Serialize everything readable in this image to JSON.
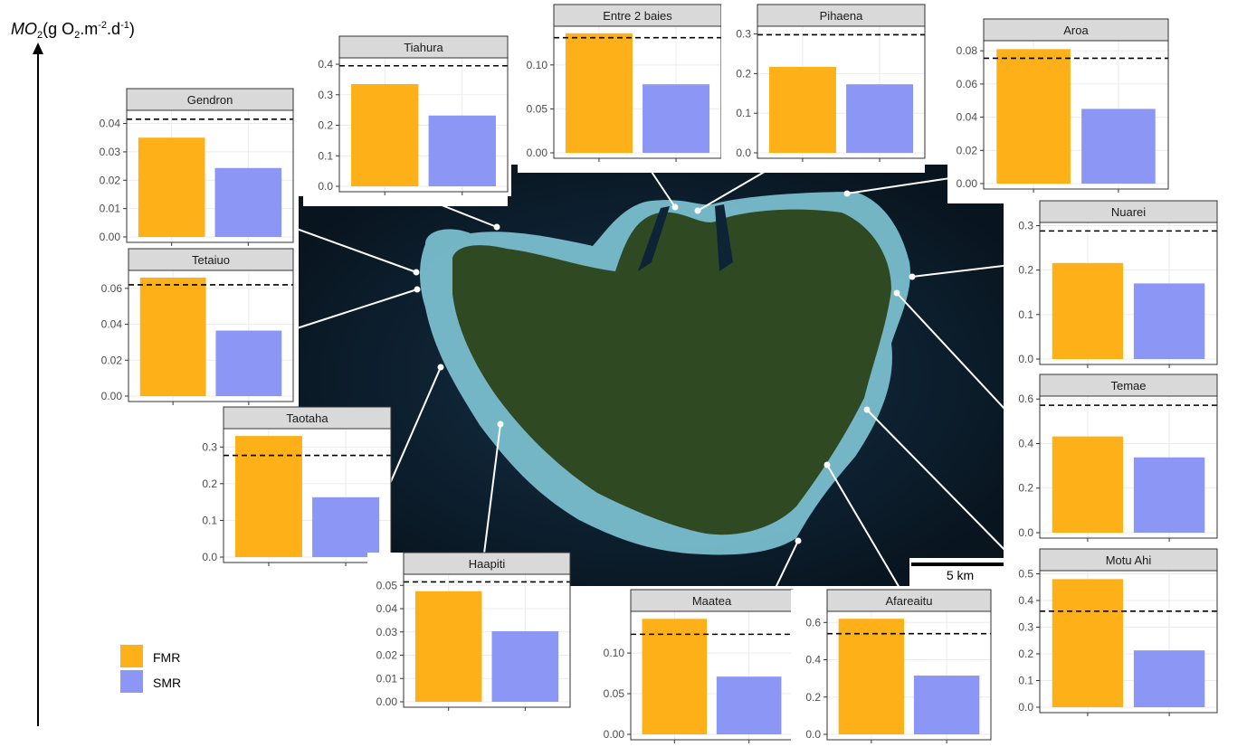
{
  "y_axis_label": {
    "symbol": "MO",
    "symbol_sub": "2",
    "unit_open": "(g O",
    "unit_sub": "2",
    "unit_mid": ".m",
    "unit_sup1": "-2",
    "unit_mid2": ".d",
    "unit_sup2": "-1",
    "unit_close": ")"
  },
  "legend": [
    {
      "label": "FMR",
      "color": "#FDB017"
    },
    {
      "label": "SMR",
      "color": "#8C96F5"
    }
  ],
  "scale_bar_label": "5 km",
  "colors": {
    "fmr": "#FDB017",
    "smr": "#8C96F5",
    "strip": "#d9d9d9",
    "grid": "#ebebeb",
    "ocean": "#0b1a26",
    "lagoon": "#7fc6d6",
    "land": "#2f4a22"
  },
  "chart_data": [
    {
      "type": "bar",
      "title": "Gendron",
      "categories": [
        "FMR",
        "SMR"
      ],
      "values": [
        0.035,
        0.0243
      ],
      "threshold": 0.0415,
      "ylim": [
        0,
        0.044
      ],
      "yticks": [
        0,
        0.01,
        0.02,
        0.03,
        0.04
      ],
      "tick_labels": [
        "0.00",
        "0.01",
        "0.02",
        "0.03",
        "0.04"
      ]
    },
    {
      "type": "bar",
      "title": "Tiahura",
      "categories": [
        "FMR",
        "SMR"
      ],
      "values": [
        0.335,
        0.232
      ],
      "threshold": 0.395,
      "ylim": [
        0,
        0.415
      ],
      "yticks": [
        0,
        0.1,
        0.2,
        0.3,
        0.4
      ],
      "tick_labels": [
        "0.0",
        "0.1",
        "0.2",
        "0.3",
        "0.4"
      ]
    },
    {
      "type": "bar",
      "title": "Entre 2 baies",
      "categories": [
        "FMR",
        "SMR"
      ],
      "values": [
        0.136,
        0.078
      ],
      "threshold": 0.131,
      "ylim": [
        0,
        0.142
      ],
      "yticks": [
        0,
        0.05,
        0.1
      ],
      "tick_labels": [
        "0.00",
        "0.05",
        "0.10"
      ]
    },
    {
      "type": "bar",
      "title": "Pihaena",
      "categories": [
        "FMR",
        "SMR"
      ],
      "values": [
        0.217,
        0.173
      ],
      "threshold": 0.298,
      "ylim": [
        0,
        0.315
      ],
      "yticks": [
        0,
        0.1,
        0.2,
        0.3
      ],
      "tick_labels": [
        "0.0",
        "0.1",
        "0.2",
        "0.3"
      ]
    },
    {
      "type": "bar",
      "title": "Aroa",
      "categories": [
        "FMR",
        "SMR"
      ],
      "values": [
        0.081,
        0.045
      ],
      "threshold": 0.0755,
      "ylim": [
        0,
        0.085
      ],
      "yticks": [
        0,
        0.02,
        0.04,
        0.06,
        0.08
      ],
      "tick_labels": [
        "0.00",
        "0.02",
        "0.04",
        "0.06",
        "0.08"
      ]
    },
    {
      "type": "bar",
      "title": "Tetaiuo",
      "categories": [
        "FMR",
        "SMR"
      ],
      "values": [
        0.066,
        0.0365
      ],
      "threshold": 0.062,
      "ylim": [
        0,
        0.069
      ],
      "yticks": [
        0,
        0.02,
        0.04,
        0.06
      ],
      "tick_labels": [
        "0.00",
        "0.02",
        "0.04",
        "0.06"
      ]
    },
    {
      "type": "bar",
      "title": "Nuarei",
      "categories": [
        "FMR",
        "SMR"
      ],
      "values": [
        0.216,
        0.17
      ],
      "threshold": 0.288,
      "ylim": [
        0,
        0.303
      ],
      "yticks": [
        0,
        0.1,
        0.2,
        0.3
      ],
      "tick_labels": [
        "0.0",
        "0.1",
        "0.2",
        "0.3"
      ]
    },
    {
      "type": "bar",
      "title": "Taotaha",
      "categories": [
        "FMR",
        "SMR"
      ],
      "values": [
        0.33,
        0.163
      ],
      "threshold": 0.277,
      "ylim": [
        0,
        0.345
      ],
      "yticks": [
        0,
        0.1,
        0.2,
        0.3
      ],
      "tick_labels": [
        "0.0",
        "0.1",
        "0.2",
        "0.3"
      ]
    },
    {
      "type": "bar",
      "title": "Temae",
      "categories": [
        "FMR",
        "SMR"
      ],
      "values": [
        0.432,
        0.338
      ],
      "threshold": 0.572,
      "ylim": [
        0,
        0.605
      ],
      "yticks": [
        0,
        0.2,
        0.4,
        0.6
      ],
      "tick_labels": [
        "0.0",
        "0.2",
        "0.4",
        "0.6"
      ]
    },
    {
      "type": "bar",
      "title": "Haapiti",
      "categories": [
        "FMR",
        "SMR"
      ],
      "values": [
        0.0475,
        0.0303
      ],
      "threshold": 0.0515,
      "ylim": [
        0,
        0.054
      ],
      "yticks": [
        0,
        0.01,
        0.02,
        0.03,
        0.04,
        0.05
      ],
      "tick_labels": [
        "0.00",
        "0.01",
        "0.02",
        "0.03",
        "0.04",
        "0.05"
      ]
    },
    {
      "type": "bar",
      "title": "Maatea",
      "categories": [
        "FMR",
        "SMR"
      ],
      "values": [
        0.142,
        0.071
      ],
      "threshold": 0.123,
      "ylim": [
        0,
        0.149
      ],
      "yticks": [
        0,
        0.05,
        0.1
      ],
      "tick_labels": [
        "0.00",
        "0.05",
        "0.10"
      ]
    },
    {
      "type": "bar",
      "title": "Afareaitu",
      "categories": [
        "FMR",
        "SMR"
      ],
      "values": [
        0.62,
        0.315
      ],
      "threshold": 0.54,
      "ylim": [
        0,
        0.65
      ],
      "yticks": [
        0,
        0.2,
        0.4,
        0.6
      ],
      "tick_labels": [
        "0.0",
        "0.2",
        "0.4",
        "0.6"
      ]
    },
    {
      "type": "bar",
      "title": "Motu Ahi",
      "categories": [
        "FMR",
        "SMR"
      ],
      "values": [
        0.48,
        0.213
      ],
      "threshold": 0.36,
      "ylim": [
        0,
        0.505
      ],
      "yticks": [
        0,
        0.1,
        0.2,
        0.3,
        0.4,
        0.5
      ],
      "tick_labels": [
        "0.0",
        "0.1",
        "0.2",
        "0.3",
        "0.4",
        "0.5"
      ]
    }
  ]
}
